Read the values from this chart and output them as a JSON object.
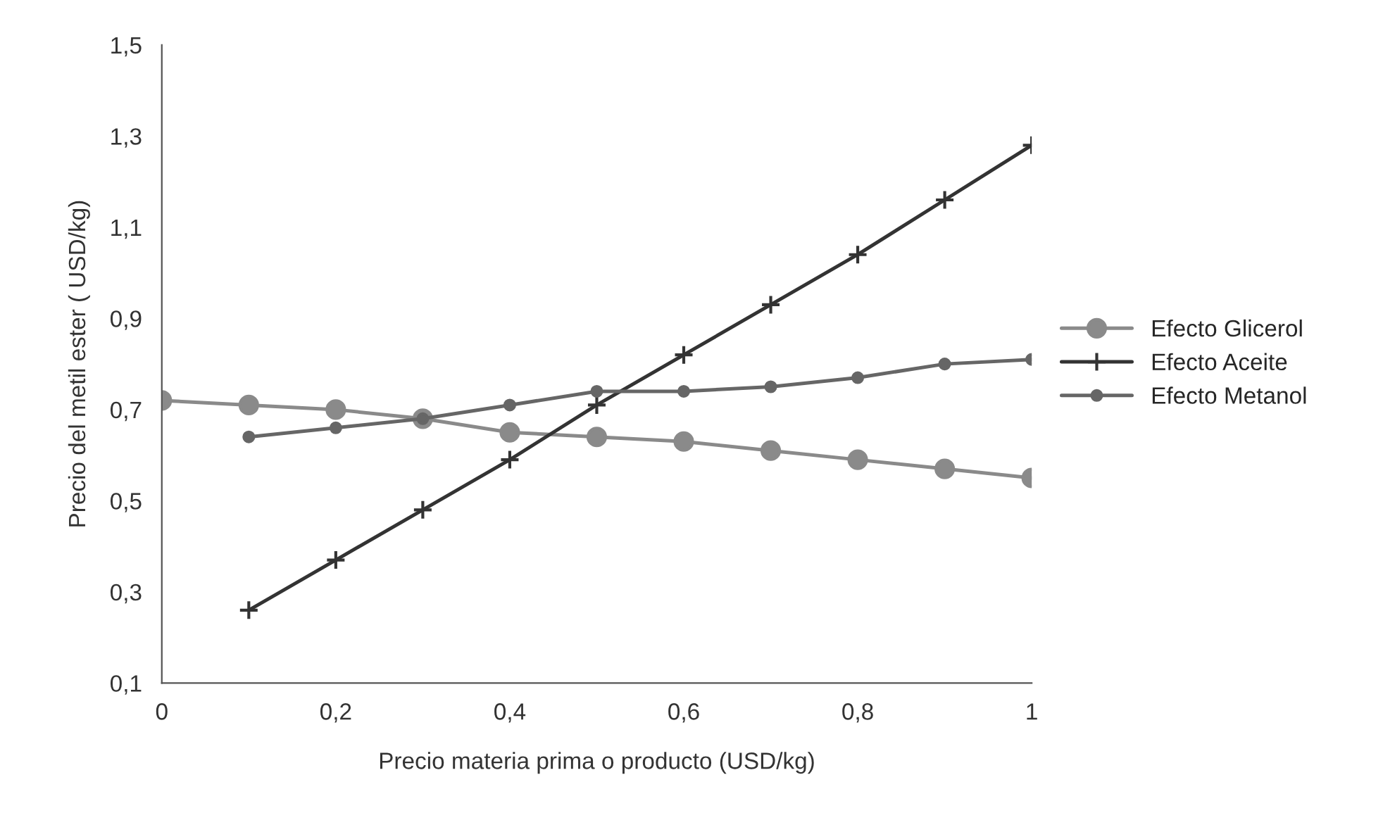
{
  "chart_data": {
    "type": "line",
    "xlabel": "Precio materia prima o producto (USD/kg)",
    "ylabel": "Precio del metil ester ( USD/kg)",
    "series": [
      {
        "name": "Efecto Glicerol",
        "color": "#8a8a8a",
        "marker": "circle",
        "x": [
          0,
          0.1,
          0.2,
          0.3,
          0.4,
          0.5,
          0.6,
          0.7,
          0.8,
          0.9,
          1
        ],
        "values": [
          0.72,
          0.71,
          0.7,
          0.68,
          0.65,
          0.64,
          0.63,
          0.61,
          0.59,
          0.57,
          0.55
        ]
      },
      {
        "name": "Efecto Aceite",
        "color": "#333333",
        "marker": "cross",
        "x": [
          0.1,
          0.2,
          0.3,
          0.4,
          0.5,
          0.6,
          0.7,
          0.8,
          0.9,
          1
        ],
        "values": [
          0.26,
          0.37,
          0.48,
          0.59,
          0.71,
          0.82,
          0.93,
          1.04,
          1.16,
          1.28
        ]
      },
      {
        "name": "Efecto Metanol",
        "color": "#666666",
        "marker": "circle",
        "x": [
          0.1,
          0.2,
          0.3,
          0.4,
          0.5,
          0.6,
          0.7,
          0.8,
          0.9,
          1
        ],
        "values": [
          0.64,
          0.66,
          0.68,
          0.71,
          0.74,
          0.74,
          0.75,
          0.77,
          0.8,
          0.81
        ]
      }
    ],
    "xlim": [
      0,
      1
    ],
    "xticks": [
      {
        "value": 0,
        "label": "0"
      },
      {
        "value": 0.2,
        "label": "0,2"
      },
      {
        "value": 0.4,
        "label": "0,4"
      },
      {
        "value": 0.6,
        "label": "0,6"
      },
      {
        "value": 0.8,
        "label": "0,8"
      },
      {
        "value": 1,
        "label": "1"
      }
    ],
    "ylim": [
      0.1,
      1.5
    ],
    "yticks": [
      {
        "value": 0.1,
        "label": "0,1"
      },
      {
        "value": 0.3,
        "label": "0,3"
      },
      {
        "value": 0.5,
        "label": "0,5"
      },
      {
        "value": 0.7,
        "label": "0,7"
      },
      {
        "value": 0.9,
        "label": "0,9"
      },
      {
        "value": 1.1,
        "label": "1,1"
      },
      {
        "value": 1.3,
        "label": "1,3"
      },
      {
        "value": 1.5,
        "label": "1,5"
      }
    ],
    "grid": false,
    "legend": "right",
    "line_style": "solid"
  }
}
